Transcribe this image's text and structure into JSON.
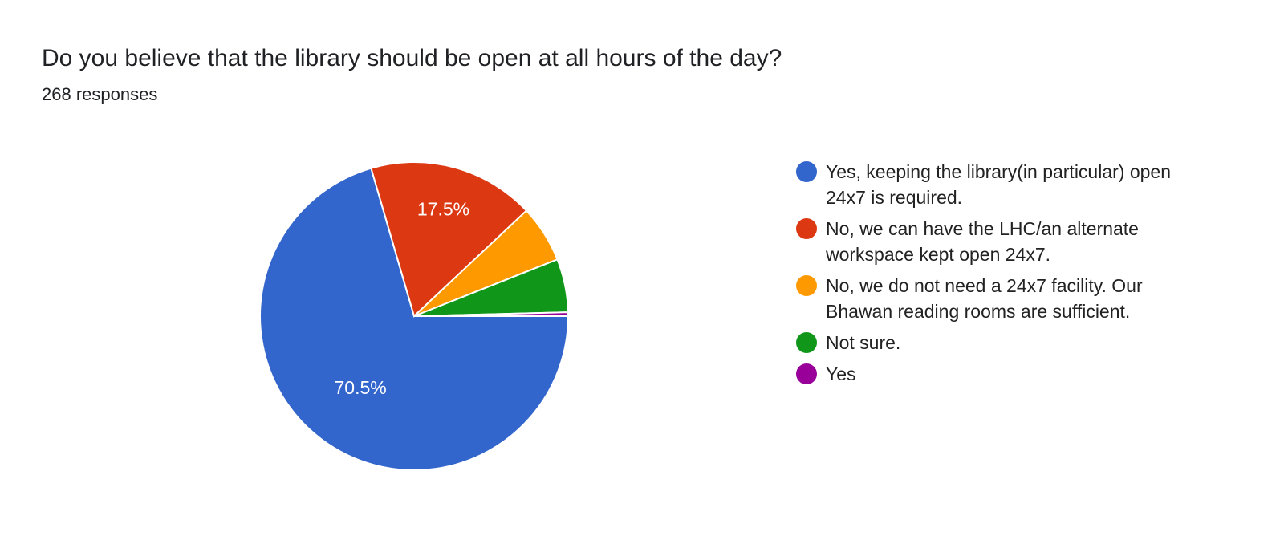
{
  "header": {
    "title": "Do you believe that the library should be open at all hours of the day?",
    "responses": "268 responses"
  },
  "chart_data": {
    "type": "pie",
    "title": "Do you believe that the library should be open at all hours of the day?",
    "categories": [
      "Yes, keeping the library(in particular) open 24x7 is required.",
      "No, we can have the LHC/an alternate workspace kept open 24x7.",
      "No, we do not need a 24x7 facility. Our Bhawan reading rooms are sufficient.",
      "Not sure.",
      "Yes"
    ],
    "values": [
      70.5,
      17.5,
      6.0,
      5.6,
      0.4
    ],
    "data_labels": [
      "70.5%",
      "17.5%",
      "",
      "",
      ""
    ],
    "colors": [
      "#3366cc",
      "#dc3912",
      "#ff9900",
      "#109618",
      "#990099"
    ],
    "legend_position": "right"
  }
}
